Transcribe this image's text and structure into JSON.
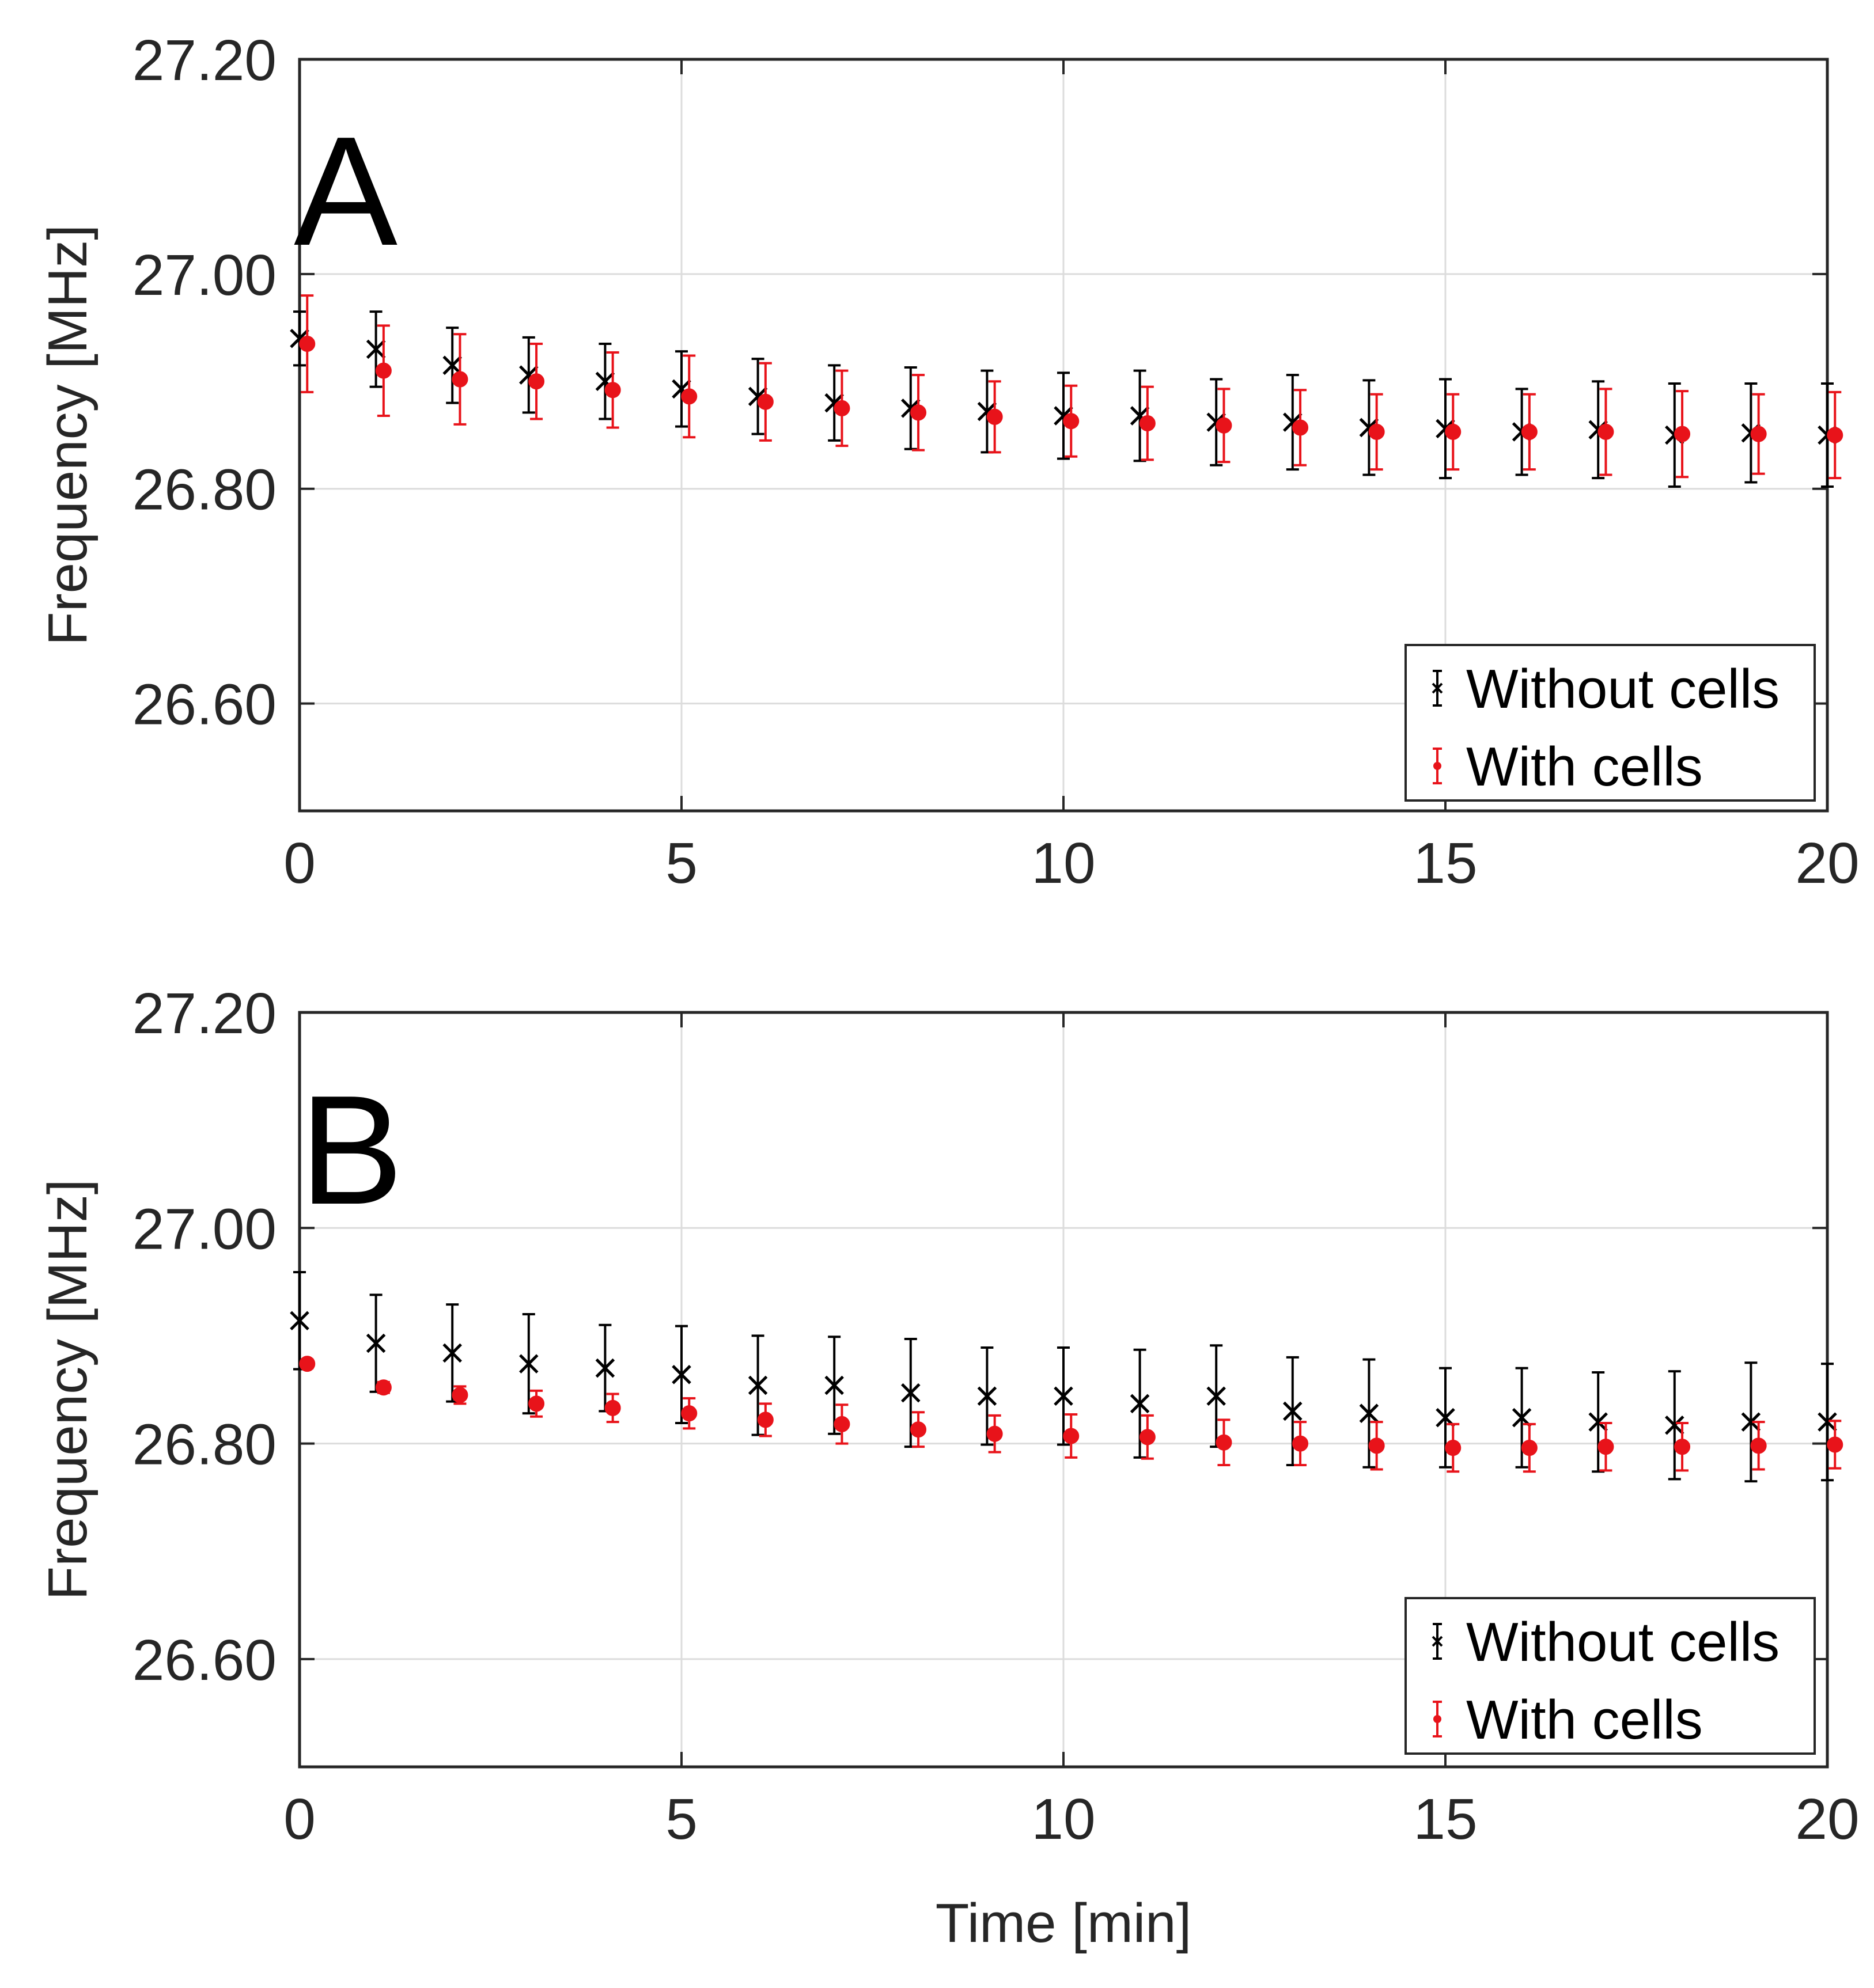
{
  "chart_data": [
    {
      "type": "scatter",
      "panel_label": "A",
      "title": "",
      "xlabel": "",
      "ylabel": "Frequency [MHz]",
      "xlim": [
        0,
        20
      ],
      "ylim": [
        26.5,
        27.2
      ],
      "xticks": [
        0,
        5,
        10,
        15,
        20
      ],
      "xtick_labels": [
        "0",
        "5",
        "10",
        "15",
        "20"
      ],
      "yticks": [
        26.6,
        26.8,
        27.0,
        27.2
      ],
      "ytick_labels": [
        "26.60",
        "26.80",
        "27.00",
        "27.20"
      ],
      "grid": true,
      "legend_position": "bottom-right",
      "series": [
        {
          "name": "Without cells",
          "color": "#000000",
          "marker": "x",
          "x_offset": 0,
          "x": [
            0,
            1,
            2,
            3,
            4,
            5,
            6,
            7,
            8,
            9,
            10,
            11,
            12,
            13,
            14,
            15,
            16,
            17,
            18,
            19,
            20
          ],
          "y": [
            26.94,
            26.93,
            26.915,
            26.906,
            26.9,
            26.893,
            26.886,
            26.88,
            26.875,
            26.872,
            26.868,
            26.868,
            26.862,
            26.862,
            26.857,
            26.856,
            26.853,
            26.855,
            26.85,
            26.852,
            26.85
          ],
          "err": [
            0.025,
            0.035,
            0.035,
            0.035,
            0.035,
            0.035,
            0.035,
            0.035,
            0.038,
            0.038,
            0.04,
            0.042,
            0.04,
            0.044,
            0.044,
            0.046,
            0.04,
            0.045,
            0.048,
            0.046,
            0.048
          ]
        },
        {
          "name": "With cells",
          "color": "#e8131a",
          "marker": "o",
          "x_offset": 0.1,
          "x": [
            0,
            1,
            2,
            3,
            4,
            5,
            6,
            7,
            8,
            9,
            10,
            11,
            12,
            13,
            14,
            15,
            16,
            17,
            18,
            19,
            20
          ],
          "y": [
            26.935,
            26.91,
            26.902,
            26.9,
            26.892,
            26.886,
            26.881,
            26.875,
            26.871,
            26.867,
            26.863,
            26.861,
            26.859,
            26.857,
            26.853,
            26.853,
            26.853,
            26.853,
            26.851,
            26.851,
            26.85
          ],
          "err": [
            0.045,
            0.042,
            0.042,
            0.035,
            0.035,
            0.038,
            0.036,
            0.035,
            0.035,
            0.033,
            0.033,
            0.034,
            0.034,
            0.035,
            0.035,
            0.035,
            0.035,
            0.04,
            0.04,
            0.037,
            0.04
          ]
        }
      ]
    },
    {
      "type": "scatter",
      "panel_label": "B",
      "title": "",
      "xlabel": "Time [min]",
      "ylabel": "Frequency [MHz]",
      "xlim": [
        0,
        20
      ],
      "ylim": [
        26.5,
        27.2
      ],
      "xticks": [
        0,
        5,
        10,
        15,
        20
      ],
      "xtick_labels": [
        "0",
        "5",
        "10",
        "15",
        "20"
      ],
      "yticks": [
        26.6,
        26.8,
        27.0,
        27.2
      ],
      "ytick_labels": [
        "26.60",
        "26.80",
        "27.00",
        "27.20"
      ],
      "grid": true,
      "legend_position": "bottom-right",
      "series": [
        {
          "name": "Without cells",
          "color": "#000000",
          "marker": "x",
          "x_offset": 0,
          "x": [
            0,
            1,
            2,
            3,
            4,
            5,
            6,
            7,
            8,
            9,
            10,
            11,
            12,
            13,
            14,
            15,
            16,
            17,
            18,
            19,
            20
          ],
          "y": [
            26.914,
            26.893,
            26.884,
            26.874,
            26.87,
            26.864,
            26.854,
            26.854,
            26.847,
            26.844,
            26.844,
            26.837,
            26.844,
            26.83,
            26.828,
            26.824,
            26.824,
            26.82,
            26.817,
            26.82,
            26.82
          ],
          "err": [
            0.045,
            0.045,
            0.045,
            0.046,
            0.04,
            0.045,
            0.046,
            0.045,
            0.05,
            0.045,
            0.045,
            0.05,
            0.047,
            0.05,
            0.05,
            0.046,
            0.046,
            0.046,
            0.05,
            0.055,
            0.054
          ]
        },
        {
          "name": "With cells",
          "color": "#e8131a",
          "marker": "o",
          "x_offset": 0.1,
          "x": [
            0,
            1,
            2,
            3,
            4,
            5,
            6,
            7,
            8,
            9,
            10,
            11,
            12,
            13,
            14,
            15,
            16,
            17,
            18,
            19,
            20
          ],
          "y": [
            26.874,
            26.852,
            26.845,
            26.837,
            26.833,
            26.828,
            26.822,
            26.818,
            26.813,
            26.809,
            26.807,
            26.806,
            26.801,
            26.8,
            26.798,
            26.796,
            26.796,
            26.797,
            26.797,
            26.798,
            26.799
          ],
          "err": [
            0.004,
            0.005,
            0.008,
            0.012,
            0.013,
            0.014,
            0.015,
            0.018,
            0.016,
            0.017,
            0.02,
            0.02,
            0.021,
            0.02,
            0.022,
            0.022,
            0.022,
            0.022,
            0.022,
            0.022,
            0.022
          ]
        }
      ]
    }
  ]
}
